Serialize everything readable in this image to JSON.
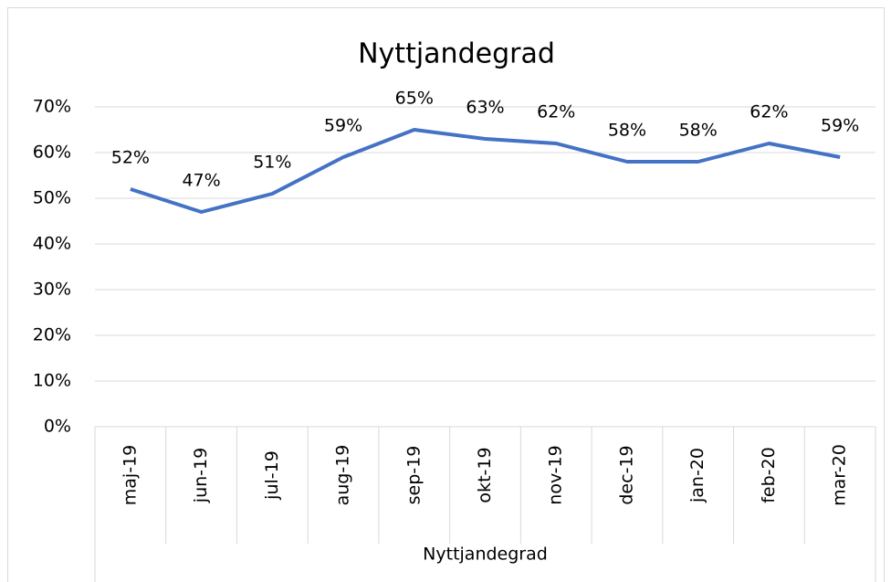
{
  "chart_data": {
    "type": "line",
    "title": "Nyttjandegrad",
    "categories": [
      "maj-19",
      "jun-19",
      "jul-19",
      "aug-19",
      "sep-19",
      "okt-19",
      "nov-19",
      "dec-19",
      "jan-20",
      "feb-20",
      "mar-20"
    ],
    "series": [
      {
        "name": "Nyttjandegrad",
        "color": "#4472c4",
        "values": [
          52,
          47,
          51,
          59,
          65,
          63,
          62,
          58,
          58,
          62,
          59
        ],
        "value_labels": [
          "52%",
          "47%",
          "51%",
          "59%",
          "65%",
          "63%",
          "62%",
          "58%",
          "58%",
          "62%",
          "59%"
        ]
      }
    ],
    "ylim": [
      0,
      70
    ],
    "yticks": [
      {
        "value": 0,
        "label": "0%"
      },
      {
        "value": 10,
        "label": "10%"
      },
      {
        "value": 20,
        "label": "20%"
      },
      {
        "value": 30,
        "label": "30%"
      },
      {
        "value": 40,
        "label": "40%"
      },
      {
        "value": 50,
        "label": "50%"
      },
      {
        "value": 60,
        "label": "60%"
      },
      {
        "value": 70,
        "label": "70%"
      }
    ],
    "grid": true,
    "legend": "bottom"
  }
}
